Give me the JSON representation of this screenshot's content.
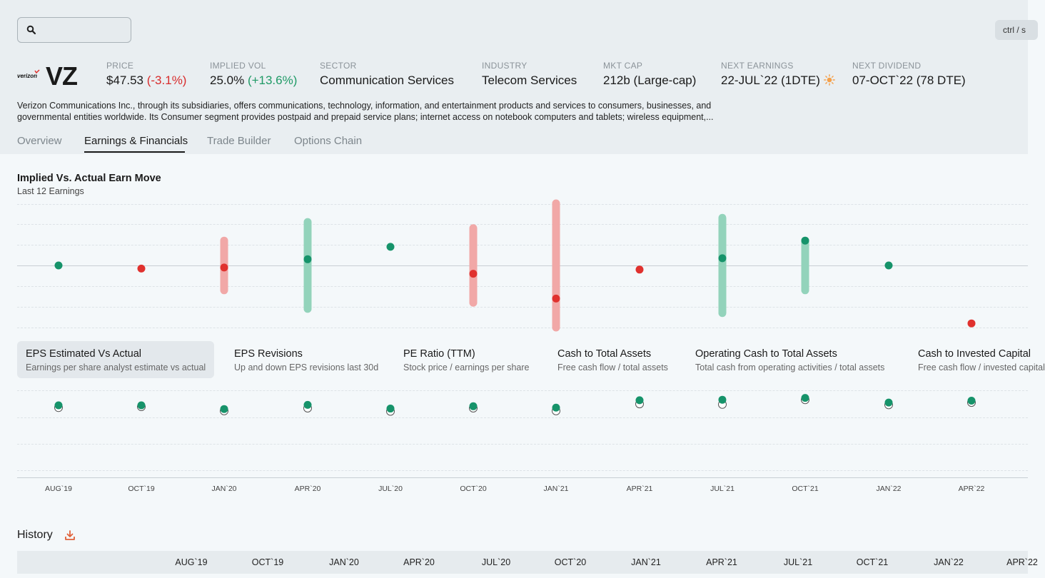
{
  "search": {
    "placeholder": ""
  },
  "shortcut": "ctrl / s",
  "brand": {
    "logo_text": "verizon"
  },
  "ticker": "VZ",
  "stats": {
    "price": {
      "label": "PRICE",
      "value": "$47.53",
      "change": "(-3.1%)"
    },
    "implied_vol": {
      "label": "IMPLIED VOL",
      "value": "25.0%",
      "change": "(+13.6%)"
    },
    "sector": {
      "label": "SECTOR",
      "value": "Communication Services"
    },
    "industry": {
      "label": "INDUSTRY",
      "value": "Telecom Services"
    },
    "mkt_cap": {
      "label": "MKT CAP",
      "value": "212b (Large-cap)"
    },
    "next_earnings": {
      "label": "NEXT EARNINGS",
      "value": "22-JUL`22 (1DTE)"
    },
    "next_dividend": {
      "label": "NEXT DIVIDEND",
      "value": "07-OCT`22 (78 DTE)"
    }
  },
  "description": "Verizon Communications Inc., through its subsidiaries, offers communications, technology, information, and entertainment products and services to consumers, businesses, and governmental entities worldwide. Its Consumer segment provides postpaid and prepaid service plans; internet access on notebook computers and tablets; wireless equipment,...",
  "tabs": [
    "Overview",
    "Earnings & Financials",
    "Trade Builder",
    "Options Chain"
  ],
  "earn_move": {
    "title": "Implied Vs. Actual Earn Move",
    "subtitle": "Last 12 Earnings"
  },
  "metrics": [
    {
      "title": "EPS Estimated Vs Actual",
      "subtitle": "Earnings per share analyst estimate vs actual"
    },
    {
      "title": "EPS Revisions",
      "subtitle": "Up and down EPS revisions last 30d"
    },
    {
      "title": "PE Ratio (TTM)",
      "subtitle": "Stock price / earnings per share"
    },
    {
      "title": "Cash to Total Assets",
      "subtitle": "Free cash flow / total assets"
    },
    {
      "title": "Operating Cash to Total Assets",
      "subtitle": "Total cash from operating activities / total assets"
    },
    {
      "title": "Cash to Invested Capital",
      "subtitle": "Free cash flow / invested capital"
    }
  ],
  "x_labels": [
    "AUG`19",
    "OCT`19",
    "JAN`20",
    "APR`20",
    "JUL`20",
    "OCT`20",
    "JAN`21",
    "APR`21",
    "JUL`21",
    "OCT`21",
    "JAN`22",
    "APR`22"
  ],
  "history": {
    "title": "History",
    "columns": [
      "AUG`19",
      "OCT`19",
      "JAN`20",
      "APR`20",
      "JUL`20",
      "OCT`20",
      "JAN`21",
      "APR`21",
      "JUL`21",
      "OCT`21",
      "JAN`22",
      "APR`22"
    ]
  },
  "colors": {
    "red": "#e0312e",
    "green": "#16936a",
    "red_band": "#f1a8a7",
    "green_band": "#93d3bb"
  },
  "chart_data": [
    {
      "type": "scatter",
      "title": "Implied Vs. Actual Earn Move",
      "subtitle": "Last 12 Earnings",
      "categories": [
        "AUG`19",
        "OCT`19",
        "JAN`20",
        "APR`20",
        "JUL`20",
        "OCT`20",
        "JAN`21",
        "APR`21",
        "JUL`21",
        "OCT`21",
        "JAN`22",
        "APR`22"
      ],
      "ylim": [
        -3,
        3
      ],
      "series": [
        {
          "values": [
            0.0,
            -0.15,
            -0.1,
            0.3,
            0.9,
            -0.4,
            -1.6,
            -0.2,
            0.35,
            1.2,
            0.0,
            -2.8
          ]
        },
        {
          "values": [
            null,
            null,
            1.2,
            2.1,
            null,
            1.8,
            3.0,
            null,
            2.3,
            1.2,
            null,
            null
          ]
        }
      ],
      "grid": true
    },
    {
      "type": "scatter",
      "title": "EPS Estimated Vs Actual",
      "categories": [
        "AUG`19",
        "OCT`19",
        "JAN`20",
        "APR`20",
        "JUL`20",
        "OCT`20",
        "JAN`21",
        "APR`21",
        "JUL`21",
        "OCT`21",
        "JAN`22",
        "APR`22"
      ],
      "series": [
        {
          "values": [
            1.25,
            1.25,
            1.17,
            1.26,
            1.18,
            1.23,
            1.2,
            1.36,
            1.37,
            1.41,
            1.31,
            1.35
          ]
        },
        {
          "values": [
            1.23,
            1.25,
            1.16,
            1.22,
            1.15,
            1.22,
            1.16,
            1.31,
            1.3,
            1.4,
            1.29,
            1.34
          ]
        }
      ],
      "grid": true
    }
  ]
}
